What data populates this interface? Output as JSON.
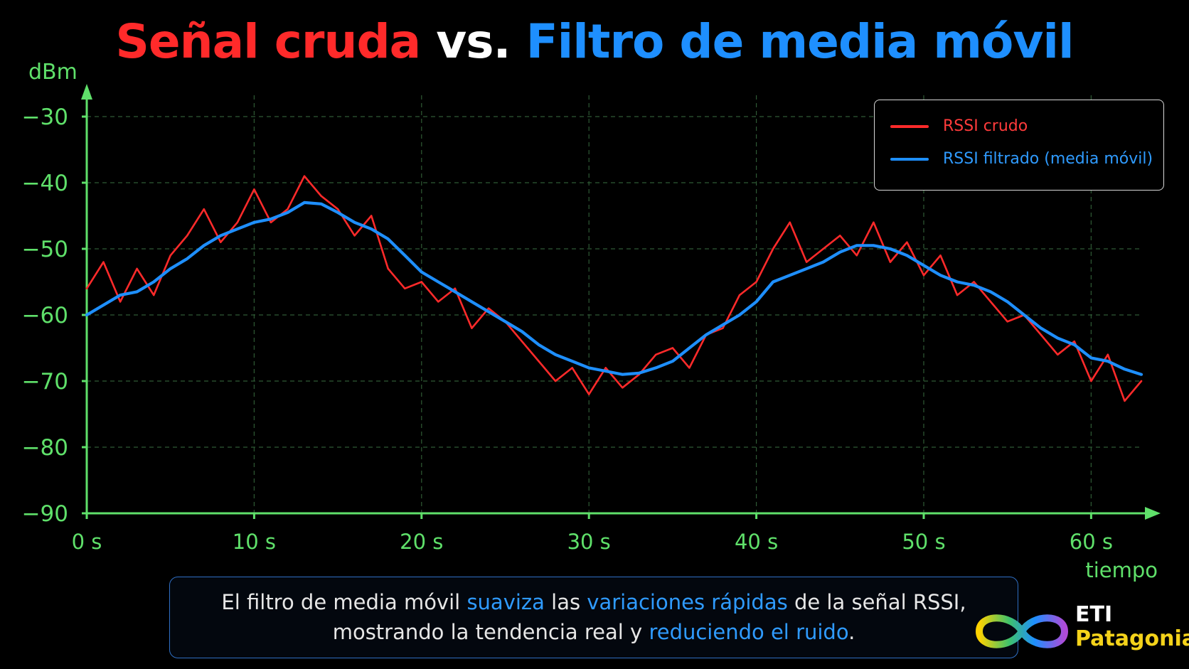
{
  "title": {
    "part1": "Señal cruda",
    "part2": "vs.",
    "part3": "Filtro de media móvil"
  },
  "chart_data": {
    "type": "line",
    "ylabel": "dBm",
    "xlabel": "tiempo",
    "xlim": [
      0,
      63
    ],
    "ylim": [
      -90,
      -30
    ],
    "x_ticks": [
      0,
      10,
      20,
      30,
      40,
      50,
      60
    ],
    "x_tick_labels": [
      "0 s",
      "10 s",
      "20 s",
      "30 s",
      "40 s",
      "50 s",
      "60 s"
    ],
    "y_ticks": [
      -30,
      -40,
      -50,
      -60,
      -70,
      -80,
      -90
    ],
    "y_tick_labels": [
      "−30",
      "−40",
      "−50",
      "−60",
      "−70",
      "−80",
      "−90"
    ],
    "grid": true,
    "legend_position": "top-right",
    "series": [
      {
        "name": "RSSI crudo",
        "color": "#ff2a2a",
        "x": [
          0,
          1,
          2,
          3,
          4,
          5,
          6,
          7,
          8,
          9,
          10,
          11,
          12,
          13,
          14,
          15,
          16,
          17,
          18,
          19,
          20,
          21,
          22,
          23,
          24,
          25,
          26,
          27,
          28,
          29,
          30,
          31,
          32,
          33,
          34,
          35,
          36,
          37,
          38,
          39,
          40,
          41,
          42,
          43,
          44,
          45,
          46,
          47,
          48,
          49,
          50,
          51,
          52,
          53,
          54,
          55,
          56,
          57,
          58,
          59,
          60,
          61,
          62,
          63
        ],
        "values": [
          -56,
          -52,
          -58,
          -53,
          -57,
          -51,
          -48,
          -44,
          -49,
          -46,
          -41,
          -46,
          -44,
          -39,
          -42,
          -44,
          -48,
          -45,
          -53,
          -56,
          -55,
          -58,
          -56,
          -62,
          -59,
          -61,
          -64,
          -67,
          -70,
          -68,
          -72,
          -68,
          -71,
          -69,
          -66,
          -65,
          -68,
          -63,
          -62,
          -57,
          -55,
          -50,
          -46,
          -52,
          -50,
          -48,
          -51,
          -46,
          -52,
          -49,
          -54,
          -51,
          -57,
          -55,
          -58,
          -61,
          -60,
          -63,
          -66,
          -64,
          -70,
          -66,
          -73,
          -70
        ]
      },
      {
        "name": "RSSI filtrado (media móvil)",
        "color": "#1e8fff",
        "x": [
          0,
          1,
          2,
          3,
          4,
          5,
          6,
          7,
          8,
          9,
          10,
          11,
          12,
          13,
          14,
          15,
          16,
          17,
          18,
          19,
          20,
          21,
          22,
          23,
          24,
          25,
          26,
          27,
          28,
          29,
          30,
          31,
          32,
          33,
          34,
          35,
          36,
          37,
          38,
          39,
          40,
          41,
          42,
          43,
          44,
          45,
          46,
          47,
          48,
          49,
          50,
          51,
          52,
          53,
          54,
          55,
          56,
          57,
          58,
          59,
          60,
          61,
          62,
          63
        ],
        "values": [
          -60,
          -58.5,
          -57,
          -56.5,
          -55,
          -53,
          -51.5,
          -49.5,
          -48,
          -47,
          -46,
          -45.5,
          -44.5,
          -43,
          -43.2,
          -44.5,
          -46,
          -47,
          -48.5,
          -51,
          -53.5,
          -55,
          -56.5,
          -58,
          -59.5,
          -61,
          -62.5,
          -64.5,
          -66,
          -67,
          -68,
          -68.5,
          -69,
          -68.8,
          -68,
          -67,
          -65,
          -63,
          -61.5,
          -60,
          -58,
          -55,
          -54,
          -53,
          -52,
          -50.5,
          -49.5,
          -49.5,
          -50,
          -51,
          -52.5,
          -54,
          -55,
          -55.5,
          -56.5,
          -58,
          -60,
          -62,
          -63.5,
          -64.5,
          -66.5,
          -67,
          -68.2,
          -69
        ]
      }
    ]
  },
  "note": {
    "l1a": "El filtro de media móvil ",
    "l1b": "suaviza",
    "l1c": " las ",
    "l1d": "variaciones rápidas",
    "l1e": " de la señal RSSI,",
    "l2a": "mostrando la tendencia real y ",
    "l2b": "reduciendo el ruido",
    "l2c": "."
  },
  "logo": {
    "line1": "ETI",
    "line2": "Patagonia"
  },
  "colors": {
    "axis": "#5fe06a",
    "grid": "#2f5a35",
    "raw": "#ff2a2a",
    "filtered": "#1e8fff",
    "background": "#000000"
  }
}
